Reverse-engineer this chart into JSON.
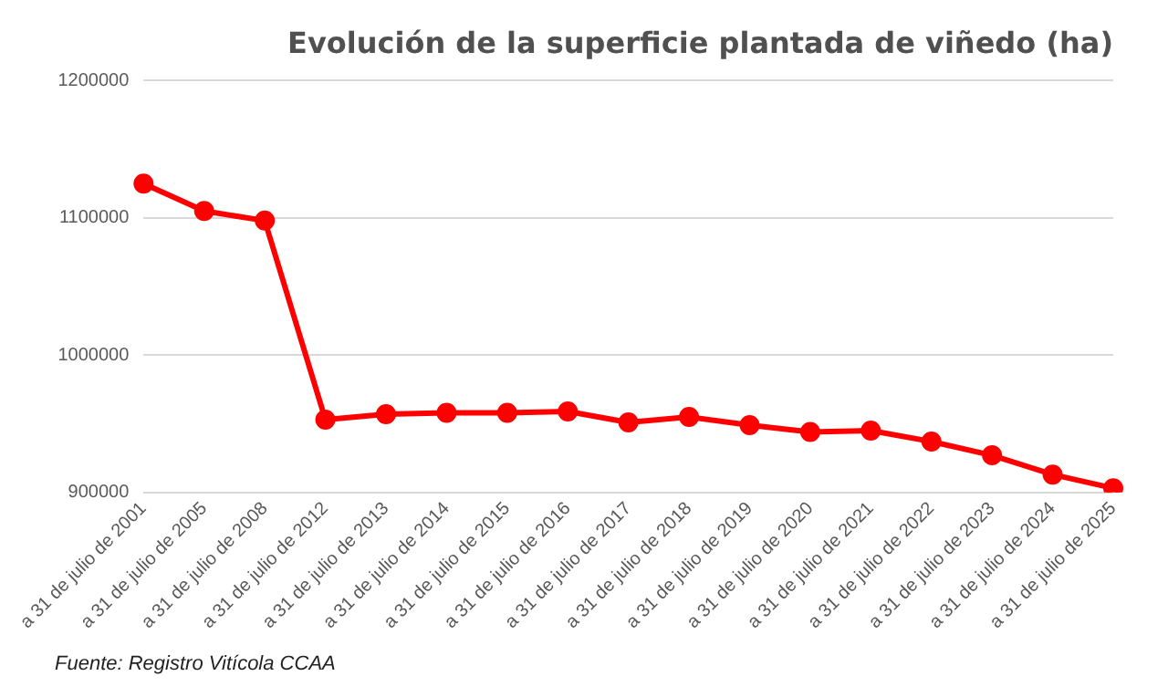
{
  "chart_data": {
    "type": "line",
    "title": "Evolución de la superficie plantada de viñedo (ha)",
    "categories": [
      "a 31 de julio de 2001",
      "a 31 de julio de 2005",
      "a 31 de julio de 2008",
      "a 31 de julio de 2012",
      "a 31 de julio de 2013",
      "a 31 de julio de 2014",
      "a 31 de julio de 2015",
      "a 31 de julio de 2016",
      "a 31 de julio de 2017",
      "a 31 de julio de 2018",
      "a 31 de julio de 2019",
      "a 31 de julio de 2020",
      "a 31 de julio de 2021",
      "a 31 de julio de 2022",
      "a 31 de julio de 2023",
      "a 31 de julio de 2024",
      "a 31 de julio de 2025"
    ],
    "series": [
      {
        "color": "#ff0000",
        "values": [
          1125000,
          1105000,
          1098000,
          953000,
          957000,
          958000,
          958000,
          959000,
          951000,
          955000,
          949000,
          944000,
          945000,
          937000,
          927000,
          913000,
          903000
        ]
      }
    ],
    "ylim": [
      900000,
      1200000
    ],
    "yticks": [
      900000,
      1000000,
      1100000,
      1200000
    ],
    "grid": "y",
    "marker": "circle",
    "line_style": "solid",
    "annotations": [
      "Fuente: Registro Vitícola CCAA"
    ]
  }
}
